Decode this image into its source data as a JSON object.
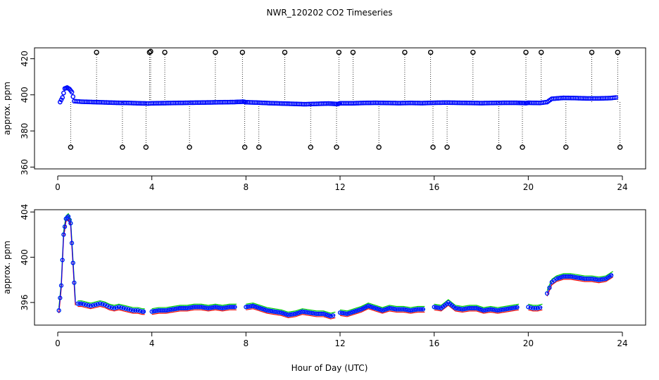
{
  "title": "NWR_120202  CO2 Timeseries",
  "xlabel": "Hour of Day (UTC)",
  "colors": {
    "axis": "#000000",
    "raw": "#000000",
    "avg_blue": "#0000ff",
    "avg_cyan": "#00cccc",
    "series_red": "#ff0000",
    "series_green": "#00cc00"
  },
  "chart_data": [
    {
      "type": "scatter",
      "title": "NWR_120202  CO2 Timeseries",
      "ylabel": "approx. ppm",
      "xlabel": "",
      "xlim": [
        0,
        24
      ],
      "ylim": [
        359,
        426
      ],
      "xticks": [
        0,
        4,
        8,
        12,
        16,
        20,
        24
      ],
      "yticks": [
        360,
        380,
        400,
        420
      ],
      "x": [
        0.1,
        0.2,
        0.3,
        0.4,
        0.5,
        0.6,
        0.7,
        1.0,
        1.5,
        2.0,
        2.5,
        3.0,
        3.5,
        3.85,
        4.0,
        4.5,
        5.0,
        5.5,
        6.0,
        6.5,
        7.0,
        7.5,
        7.9,
        8.0,
        8.5,
        9.0,
        9.5,
        10.0,
        10.5,
        11.0,
        11.5,
        11.9,
        12.0,
        12.5,
        13.0,
        13.5,
        14.0,
        14.5,
        15.0,
        15.5,
        16.0,
        16.5,
        17.0,
        17.5,
        18.0,
        18.5,
        19.0,
        19.5,
        19.9,
        20.0,
        20.5,
        20.8,
        21.0,
        21.5,
        22.0,
        22.5,
        23.0,
        23.5,
        23.8
      ],
      "y": [
        396.0,
        398.5,
        403.5,
        404.0,
        403.2,
        401.5,
        396.5,
        396.2,
        396.0,
        395.8,
        395.6,
        395.5,
        395.3,
        395.2,
        395.3,
        395.4,
        395.5,
        395.6,
        395.7,
        395.8,
        395.9,
        396.0,
        396.2,
        395.9,
        395.7,
        395.4,
        395.2,
        395.0,
        394.8,
        395.0,
        395.2,
        394.9,
        395.3,
        395.3,
        395.5,
        395.6,
        395.5,
        395.4,
        395.5,
        395.4,
        395.6,
        395.7,
        395.6,
        395.5,
        395.4,
        395.5,
        395.6,
        395.6,
        395.4,
        395.6,
        395.5,
        396.0,
        397.8,
        398.3,
        398.2,
        398.0,
        398.0,
        398.2,
        398.6
      ],
      "spikes": [
        {
          "x": 1.65,
          "y": 423.5
        },
        {
          "x": 2.75,
          "y": 371.0
        },
        {
          "x": 3.75,
          "y": 371.0
        },
        {
          "x": 3.9,
          "y": 423.5
        },
        {
          "x": 3.95,
          "y": 424.0
        },
        {
          "x": 4.55,
          "y": 423.5
        },
        {
          "x": 5.6,
          "y": 371.0
        },
        {
          "x": 6.7,
          "y": 423.5
        },
        {
          "x": 7.85,
          "y": 423.5
        },
        {
          "x": 7.95,
          "y": 371.0
        },
        {
          "x": 8.55,
          "y": 371.0
        },
        {
          "x": 9.65,
          "y": 423.5
        },
        {
          "x": 10.75,
          "y": 371.0
        },
        {
          "x": 11.85,
          "y": 371.0
        },
        {
          "x": 11.95,
          "y": 423.5
        },
        {
          "x": 12.55,
          "y": 423.5
        },
        {
          "x": 13.65,
          "y": 371.0
        },
        {
          "x": 14.75,
          "y": 423.5
        },
        {
          "x": 15.85,
          "y": 423.5
        },
        {
          "x": 15.95,
          "y": 371.0
        },
        {
          "x": 16.55,
          "y": 371.0
        },
        {
          "x": 17.65,
          "y": 423.5
        },
        {
          "x": 18.75,
          "y": 371.0
        },
        {
          "x": 19.75,
          "y": 371.0
        },
        {
          "x": 19.9,
          "y": 423.5
        },
        {
          "x": 20.55,
          "y": 423.5
        },
        {
          "x": 21.6,
          "y": 371.0
        },
        {
          "x": 22.7,
          "y": 423.5
        },
        {
          "x": 23.8,
          "y": 423.5
        },
        {
          "x": 23.9,
          "y": 371.0
        },
        {
          "x": 0.55,
          "y": 371.0
        }
      ]
    },
    {
      "type": "line",
      "title": "",
      "ylabel": "approx. ppm",
      "xlabel": "Hour of Day (UTC)",
      "xlim": [
        0,
        24
      ],
      "ylim": [
        394.0,
        404.2
      ],
      "xticks": [
        0,
        4,
        8,
        12,
        16,
        20,
        24
      ],
      "yticks": [
        396,
        400,
        404
      ],
      "segments": [
        {
          "x": [
            0.05,
            0.15,
            0.25,
            0.35,
            0.45,
            0.55,
            0.65,
            0.75
          ],
          "y": [
            395.3,
            397.5,
            402.0,
            403.4,
            403.6,
            403.0,
            399.5,
            396.0
          ]
        },
        {
          "x": [
            0.85,
            1.0,
            1.2,
            1.4,
            1.6,
            1.8,
            2.0,
            2.2,
            2.4,
            2.6,
            2.8,
            3.0,
            3.2,
            3.4,
            3.6,
            3.7
          ],
          "y": [
            395.9,
            395.9,
            395.8,
            395.7,
            395.8,
            395.9,
            395.8,
            395.6,
            395.5,
            395.6,
            395.5,
            395.4,
            395.3,
            395.3,
            395.2,
            395.2
          ]
        },
        {
          "x": [
            4.0,
            4.3,
            4.6,
            4.9,
            5.2,
            5.5,
            5.8,
            6.1,
            6.4,
            6.7,
            7.0,
            7.3,
            7.6
          ],
          "y": [
            395.2,
            395.3,
            395.3,
            395.4,
            395.5,
            395.5,
            395.6,
            395.6,
            395.5,
            395.6,
            395.5,
            395.6,
            395.6
          ]
        },
        {
          "x": [
            8.0,
            8.3,
            8.6,
            8.9,
            9.2,
            9.5,
            9.8,
            10.1,
            10.4,
            10.7,
            11.0,
            11.3,
            11.6,
            11.8
          ],
          "y": [
            395.6,
            395.7,
            395.5,
            395.3,
            395.2,
            395.1,
            394.9,
            395.0,
            395.2,
            395.1,
            395.0,
            395.0,
            394.8,
            394.9
          ]
        },
        {
          "x": [
            12.0,
            12.3,
            12.6,
            12.9,
            13.2,
            13.5,
            13.8,
            14.1,
            14.4,
            14.7,
            15.0,
            15.3,
            15.6
          ],
          "y": [
            395.1,
            395.0,
            395.2,
            395.4,
            395.7,
            395.5,
            395.3,
            395.5,
            395.4,
            395.4,
            395.3,
            395.4,
            395.4
          ]
        },
        {
          "x": [
            16.0,
            16.3,
            16.6,
            16.9,
            17.2,
            17.5,
            17.8,
            18.1,
            18.4,
            18.7,
            19.0,
            19.3,
            19.6
          ],
          "y": [
            395.6,
            395.5,
            396.0,
            395.5,
            395.4,
            395.5,
            395.5,
            395.3,
            395.4,
            395.3,
            395.4,
            395.5,
            395.6
          ]
        },
        {
          "x": [
            20.0,
            20.2,
            20.4,
            20.6
          ],
          "y": [
            395.6,
            395.5,
            395.5,
            395.6
          ]
        },
        {
          "x": [
            20.8,
            21.0,
            21.2,
            21.5,
            21.8,
            22.1,
            22.4,
            22.7,
            23.0,
            23.3,
            23.6
          ],
          "y": [
            396.8,
            397.8,
            398.1,
            398.3,
            398.3,
            398.2,
            398.1,
            398.1,
            398.0,
            398.1,
            398.5
          ]
        }
      ]
    }
  ]
}
